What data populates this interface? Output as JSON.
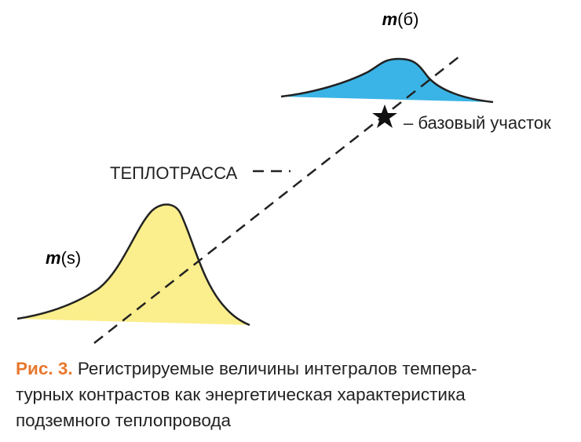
{
  "labels": {
    "top": {
      "var": "m",
      "arg": "(б)"
    },
    "base": "– базовый участок",
    "pipe": "ТЕПЛОТРАССА",
    "left": {
      "var": "m",
      "arg": "(s)"
    }
  },
  "caption": {
    "label": "Рис. 3.",
    "lines": [
      "Регистрируемые величины интегралов темпера-",
      "турных контрастов как энергетическая характеристика",
      "подземного теплопровода"
    ]
  }
}
